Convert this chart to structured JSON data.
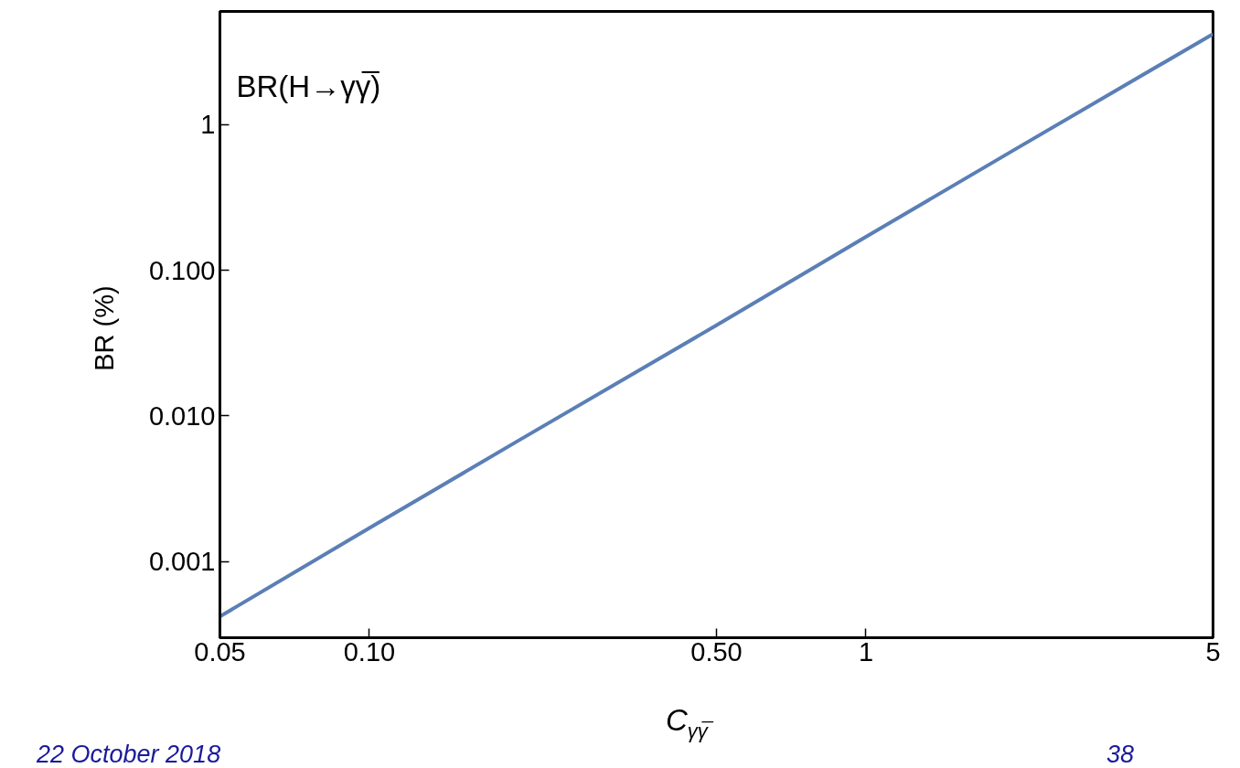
{
  "chart_data": {
    "type": "line",
    "title": "BR(H→γγ̅)",
    "xlabel": "C$_{γγ̅}$",
    "ylabel": "BR  (%)",
    "x": [
      0.05,
      0.1,
      0.2,
      0.5,
      1,
      2,
      5
    ],
    "series": [
      {
        "color": "#5b7fb5",
        "values": [
          0.00042,
          0.0017,
          0.0068,
          0.042,
          0.17,
          0.68,
          4.2
        ]
      }
    ],
    "log": "xy",
    "xlim": [
      0.05,
      5
    ],
    "ylim": [
      0.0003,
      6
    ],
    "xticks": [
      0.05,
      {
        "value": 0.1,
        "label": "0.10"
      },
      {
        "value": 0.5,
        "label": "0.50"
      },
      1,
      5
    ],
    "yticks": [
      0.001,
      {
        "value": 0.01,
        "label": "0.010"
      },
      {
        "value": 0.1,
        "label": "0.100"
      },
      1
    ],
    "grid": false,
    "marker": "none",
    "line_style": "solid",
    "annotations": [
      "22 October 2018",
      "38"
    ]
  }
}
